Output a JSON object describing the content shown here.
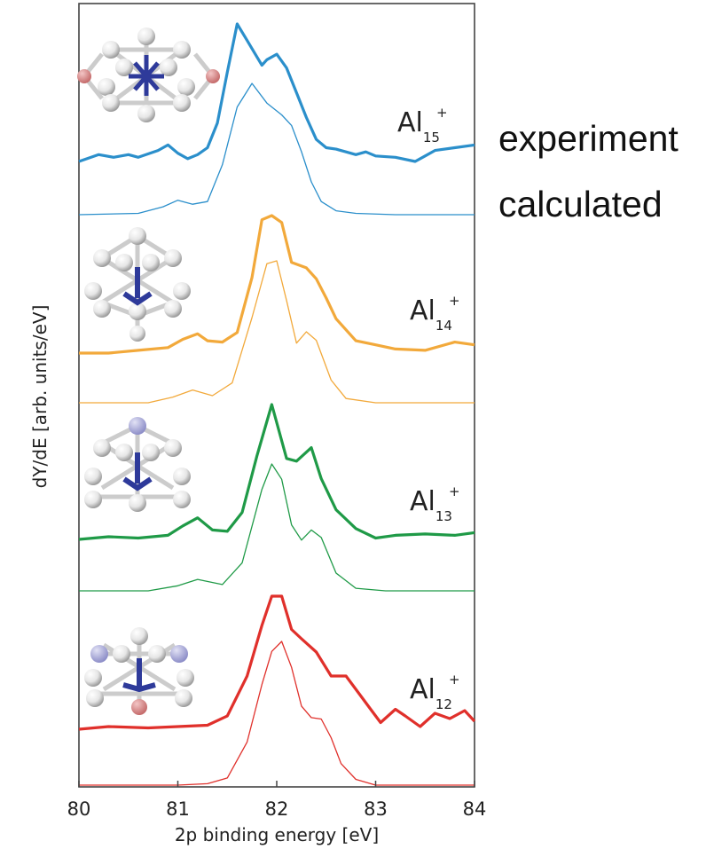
{
  "chart_data": {
    "type": "line",
    "xlabel": "2p binding energy [eV]",
    "ylabel": "dY/dE [arb. units/eV]",
    "xlim": [
      80,
      84
    ],
    "xticks": [
      "80",
      "81",
      "82",
      "83",
      "84"
    ],
    "legend": [
      "experiment",
      "calculated"
    ],
    "panels": [
      {
        "label_main": "Al",
        "label_sub": "15",
        "label_sup": "+",
        "color": "#2b8fcb",
        "experiment": {
          "x": [
            80.0,
            80.2,
            80.35,
            80.5,
            80.6,
            80.8,
            80.9,
            81.0,
            81.1,
            81.2,
            81.3,
            81.4,
            81.5,
            81.6,
            81.7,
            81.8,
            81.85,
            81.9,
            82.0,
            82.1,
            82.2,
            82.3,
            82.4,
            82.5,
            82.6,
            82.7,
            82.8,
            82.9,
            83.0,
            83.2,
            83.4,
            83.5,
            83.6,
            83.8,
            84.0
          ],
          "y": [
            0.0,
            0.05,
            0.03,
            0.05,
            0.03,
            0.08,
            0.12,
            0.06,
            0.02,
            0.05,
            0.1,
            0.28,
            0.65,
            1.0,
            0.88,
            0.76,
            0.7,
            0.74,
            0.78,
            0.68,
            0.5,
            0.32,
            0.16,
            0.1,
            0.09,
            0.07,
            0.05,
            0.07,
            0.04,
            0.03,
            0.0,
            0.04,
            0.08,
            0.1,
            0.12
          ]
        },
        "calculated": {
          "x": [
            80.0,
            80.6,
            80.85,
            81.0,
            81.15,
            81.3,
            81.45,
            81.6,
            81.75,
            81.9,
            82.05,
            82.15,
            82.25,
            82.35,
            82.45,
            82.6,
            82.8,
            83.2,
            84.0
          ],
          "y": [
            0.0,
            0.01,
            0.06,
            0.11,
            0.08,
            0.1,
            0.38,
            0.82,
            1.0,
            0.85,
            0.76,
            0.68,
            0.48,
            0.25,
            0.1,
            0.03,
            0.01,
            0.0,
            0.0
          ]
        }
      },
      {
        "label_main": "Al",
        "label_sub": "14",
        "label_sup": "+",
        "color": "#f2a93b",
        "experiment": {
          "x": [
            80.0,
            80.3,
            80.6,
            80.9,
            81.05,
            81.2,
            81.3,
            81.45,
            81.6,
            81.75,
            81.85,
            81.95,
            82.05,
            82.15,
            82.3,
            82.4,
            82.5,
            82.6,
            82.8,
            83.0,
            83.2,
            83.5,
            83.8,
            84.0
          ],
          "y": [
            0.0,
            0.0,
            0.02,
            0.04,
            0.1,
            0.14,
            0.09,
            0.08,
            0.15,
            0.55,
            0.97,
            1.0,
            0.95,
            0.66,
            0.62,
            0.54,
            0.4,
            0.25,
            0.09,
            0.06,
            0.03,
            0.02,
            0.08,
            0.06
          ]
        },
        "calculated": {
          "x": [
            80.0,
            80.7,
            80.95,
            81.15,
            81.35,
            81.55,
            81.75,
            81.9,
            82.0,
            82.1,
            82.2,
            82.3,
            82.4,
            82.55,
            82.7,
            83.0,
            84.0
          ],
          "y": [
            0.0,
            0.0,
            0.04,
            0.09,
            0.05,
            0.14,
            0.6,
            0.98,
            1.0,
            0.72,
            0.42,
            0.5,
            0.44,
            0.16,
            0.03,
            0.0,
            0.0
          ]
        }
      },
      {
        "label_main": "Al",
        "label_sub": "13",
        "label_sup": "+",
        "color": "#1f9a47",
        "experiment": {
          "x": [
            80.0,
            80.3,
            80.6,
            80.9,
            81.05,
            81.2,
            81.35,
            81.5,
            81.65,
            81.8,
            81.95,
            82.1,
            82.2,
            82.35,
            82.45,
            82.6,
            82.8,
            83.0,
            83.2,
            83.5,
            83.8,
            84.0
          ],
          "y": [
            0.0,
            0.02,
            0.01,
            0.03,
            0.1,
            0.16,
            0.07,
            0.06,
            0.2,
            0.62,
            1.0,
            0.6,
            0.58,
            0.68,
            0.45,
            0.22,
            0.08,
            0.01,
            0.03,
            0.04,
            0.03,
            0.05
          ]
        },
        "calculated": {
          "x": [
            80.0,
            80.7,
            81.0,
            81.2,
            81.45,
            81.65,
            81.85,
            81.95,
            82.05,
            82.15,
            82.25,
            82.35,
            82.45,
            82.6,
            82.8,
            83.1,
            84.0
          ],
          "y": [
            0.0,
            0.0,
            0.04,
            0.09,
            0.05,
            0.22,
            0.8,
            1.0,
            0.88,
            0.52,
            0.4,
            0.48,
            0.42,
            0.14,
            0.02,
            0.0,
            0.0
          ]
        }
      },
      {
        "label_main": "Al",
        "label_sub": "12",
        "label_sup": "+",
        "color": "#e0302b",
        "experiment": {
          "x": [
            80.0,
            80.3,
            80.7,
            81.0,
            81.3,
            81.5,
            81.7,
            81.85,
            81.95,
            82.05,
            82.15,
            82.25,
            82.4,
            82.55,
            82.7,
            82.85,
            82.95,
            83.05,
            83.2,
            83.3,
            83.45,
            83.6,
            83.75,
            83.9,
            84.0
          ],
          "y": [
            0.0,
            0.02,
            0.01,
            0.02,
            0.03,
            0.1,
            0.4,
            0.78,
            1.0,
            1.0,
            0.75,
            0.68,
            0.58,
            0.4,
            0.4,
            0.25,
            0.15,
            0.05,
            0.15,
            0.1,
            0.02,
            0.12,
            0.08,
            0.14,
            0.06
          ]
        },
        "calculated": {
          "x": [
            80.0,
            81.0,
            81.3,
            81.5,
            81.7,
            81.85,
            81.95,
            82.05,
            82.15,
            82.25,
            82.35,
            82.45,
            82.55,
            82.65,
            82.8,
            83.0,
            84.0
          ],
          "y": [
            0.0,
            0.0,
            0.01,
            0.05,
            0.3,
            0.7,
            0.93,
            1.0,
            0.82,
            0.55,
            0.47,
            0.46,
            0.33,
            0.15,
            0.04,
            0.0,
            0.0
          ]
        }
      }
    ]
  }
}
